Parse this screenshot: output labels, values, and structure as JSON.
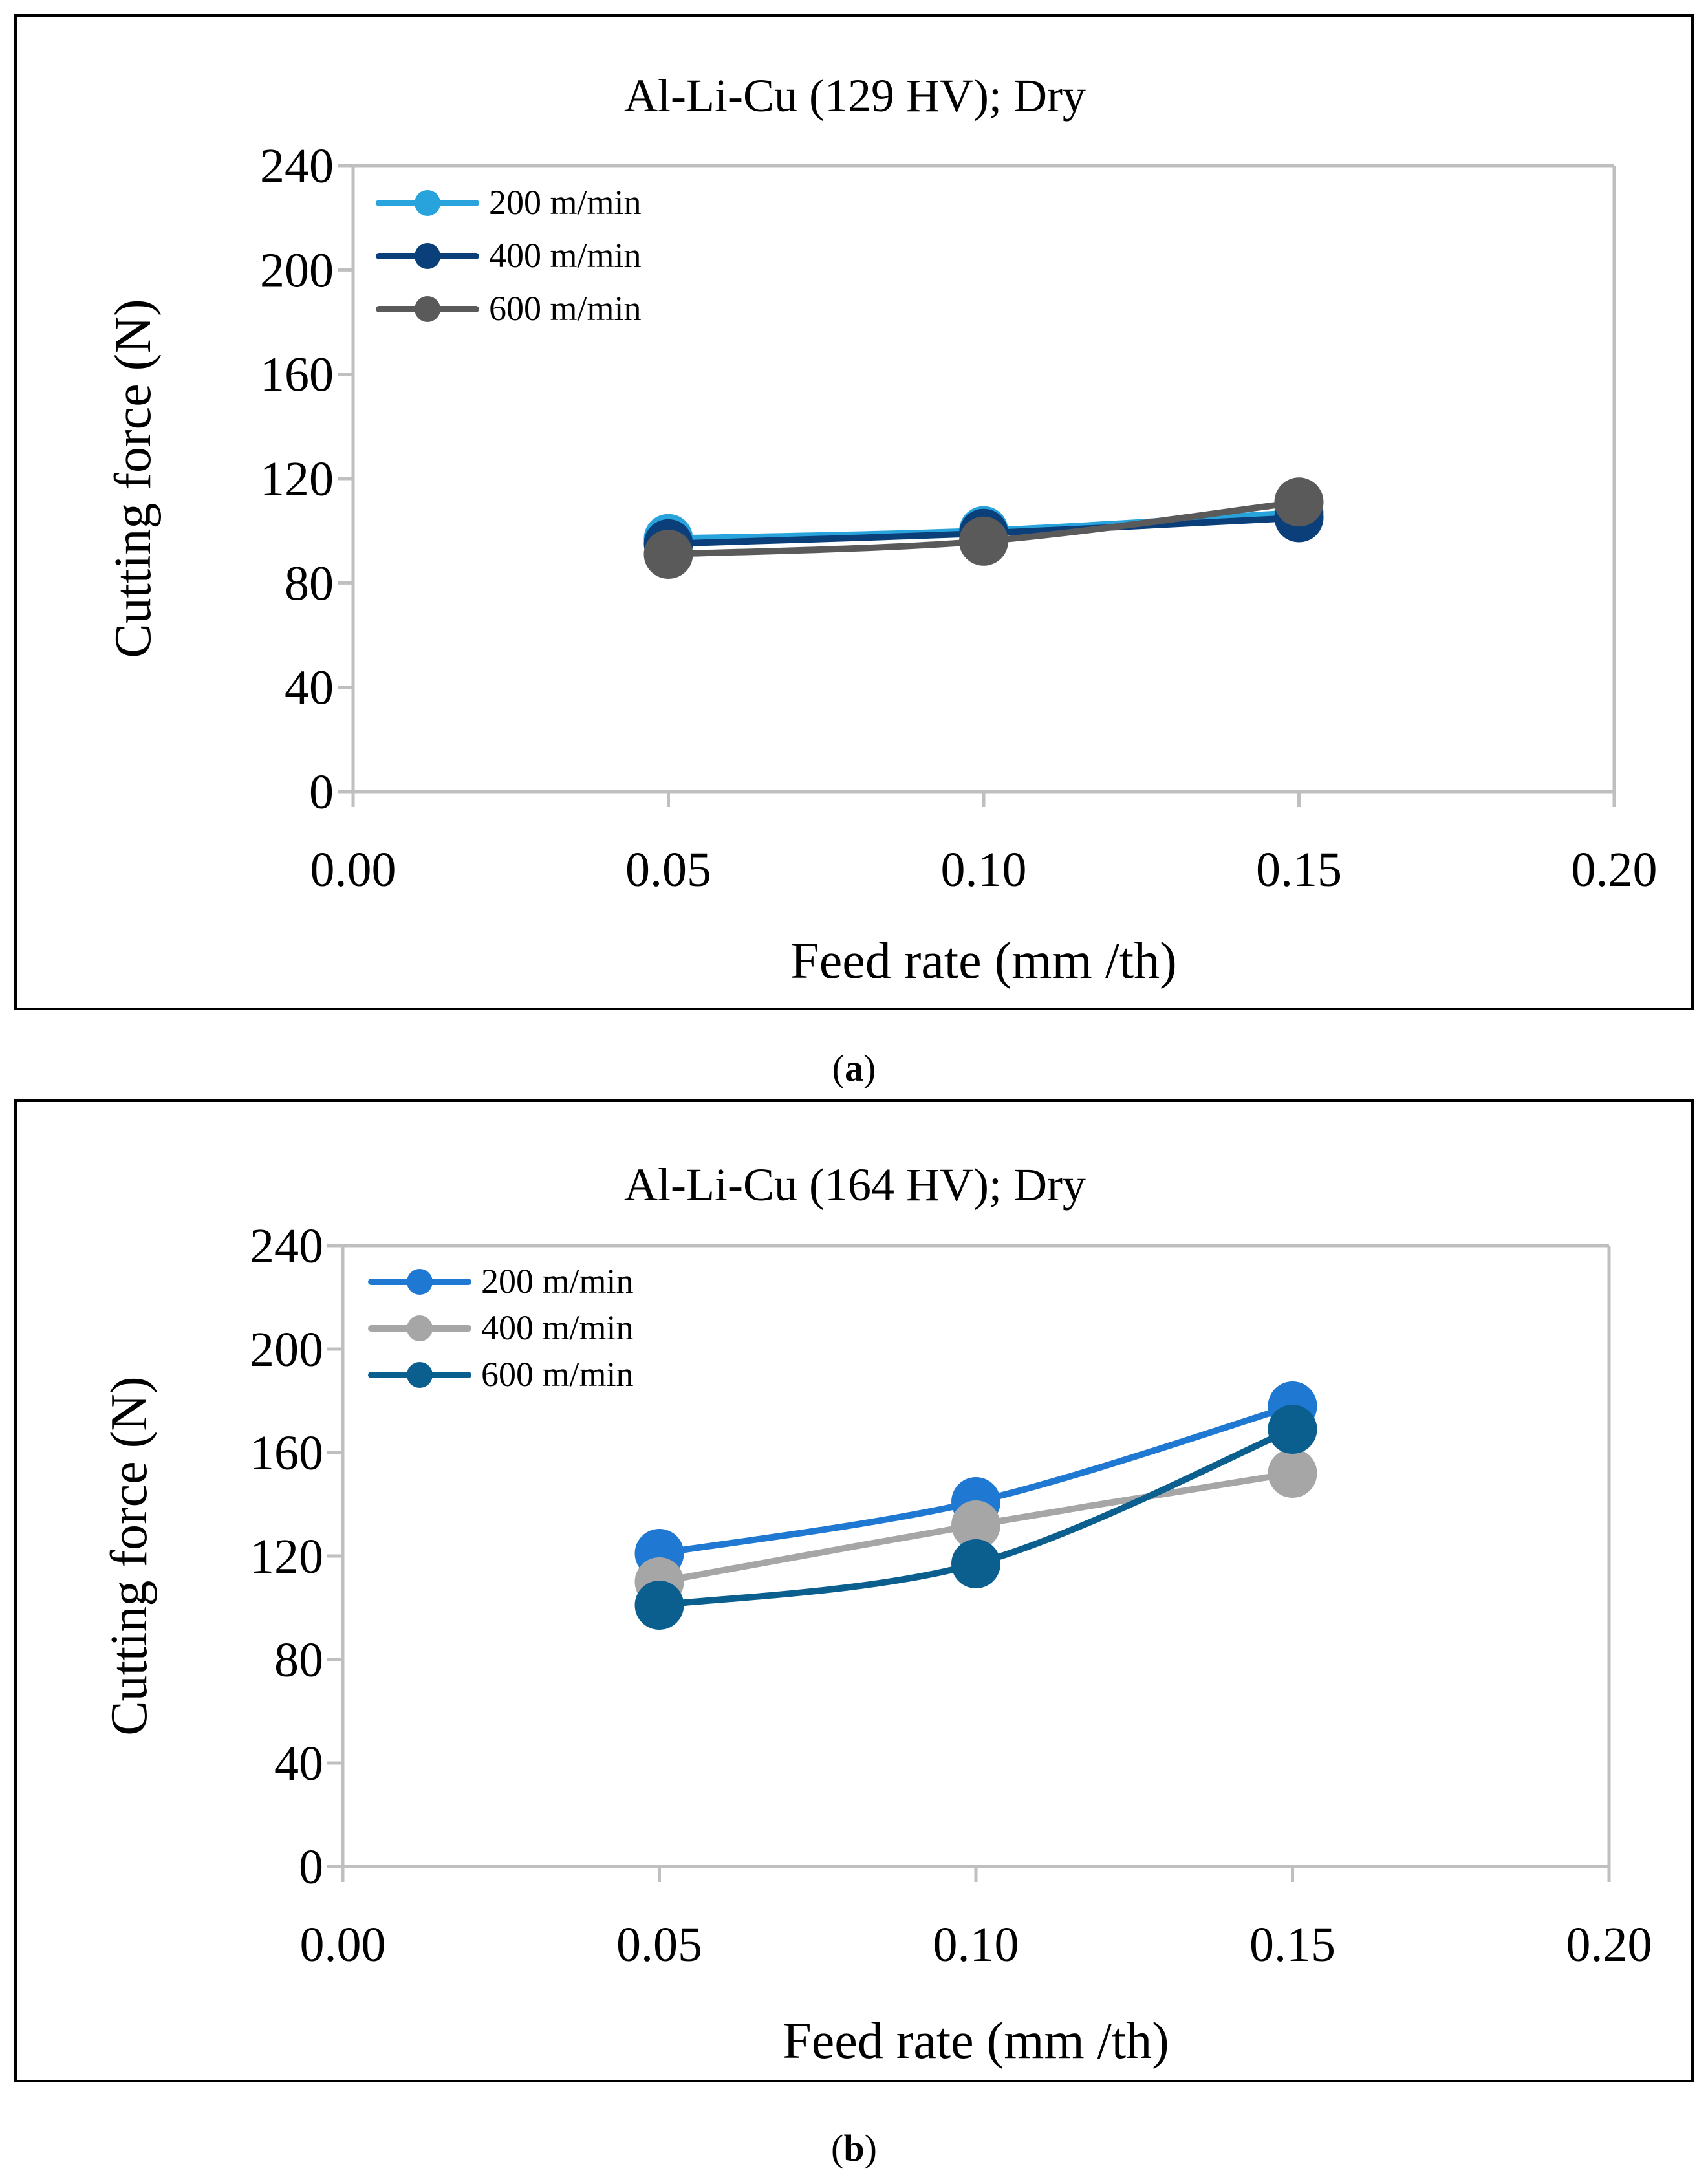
{
  "captions": {
    "a": "a",
    "b": "b"
  },
  "chart_data": [
    {
      "type": "line",
      "title": "Al-Li-Cu (129 HV);  Dry",
      "xlabel": "Feed rate (mm /th)",
      "ylabel": "Cutting force (N)",
      "xlim": [
        0.0,
        0.2
      ],
      "ylim": [
        0,
        240
      ],
      "xticks": [
        "0.00",
        "0.05",
        "0.10",
        "0.15",
        "0.20"
      ],
      "yticks": [
        "0",
        "40",
        "80",
        "120",
        "160",
        "200",
        "240"
      ],
      "legend_position": "top-left",
      "grid": false,
      "x": [
        0.05,
        0.1,
        0.15
      ],
      "series": [
        {
          "name": "200 m/min",
          "color": "#29a3dc",
          "values": [
            97,
            100,
            107
          ]
        },
        {
          "name": "400 m/min",
          "color": "#0b3f7a",
          "values": [
            95,
            99,
            105
          ]
        },
        {
          "name": "600 m/min",
          "color": "#5a5a5a",
          "values": [
            91,
            96,
            111
          ]
        }
      ]
    },
    {
      "type": "line",
      "title": "Al-Li-Cu (164 HV);  Dry",
      "xlabel": "Feed rate (mm /th)",
      "ylabel": "Cutting force (N)",
      "xlim": [
        0.0,
        0.2
      ],
      "ylim": [
        0,
        240
      ],
      "xticks": [
        "0.00",
        "0.05",
        "0.10",
        "0.15",
        "0.20"
      ],
      "yticks": [
        "0",
        "40",
        "80",
        "120",
        "160",
        "200",
        "240"
      ],
      "legend_position": "top-left",
      "grid": false,
      "x": [
        0.05,
        0.1,
        0.15
      ],
      "series": [
        {
          "name": "200 m/min",
          "color": "#1f78d1",
          "values": [
            121,
            141,
            178
          ]
        },
        {
          "name": "400 m/min",
          "color": "#a6a6a6",
          "values": [
            110,
            132,
            152
          ]
        },
        {
          "name": "600 m/min",
          "color": "#0b5f8f",
          "values": [
            101,
            117,
            169
          ]
        }
      ]
    }
  ]
}
